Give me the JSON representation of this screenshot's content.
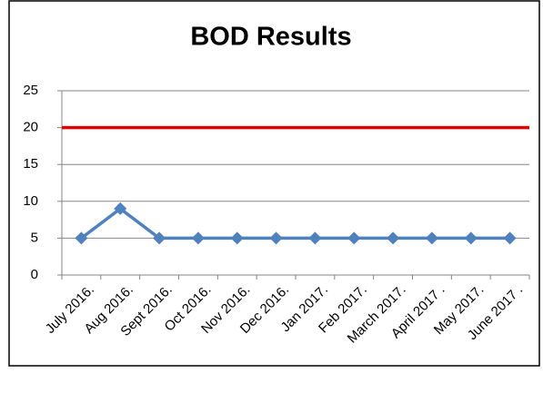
{
  "chart_data": {
    "type": "line",
    "title": "BOD Results",
    "categories": [
      "July 2016.",
      "Aug 2016.",
      "Sept  2016.",
      "Oct 2016.",
      "Nov 2016.",
      "Dec 2016.",
      "Jan 2017.",
      "Feb 2017.",
      "March 2017.",
      "April 2017 .",
      "May 2017.",
      "June 2017 ."
    ],
    "values": [
      5,
      9,
      5,
      5,
      5,
      5,
      5,
      5,
      5,
      5,
      5,
      5
    ],
    "color": "#4f81bd",
    "limit": 20,
    "limit_color": "#e00000",
    "ylim": [
      0,
      25
    ],
    "yticks": [
      0,
      5,
      10,
      15,
      20,
      25
    ],
    "grid": true
  }
}
